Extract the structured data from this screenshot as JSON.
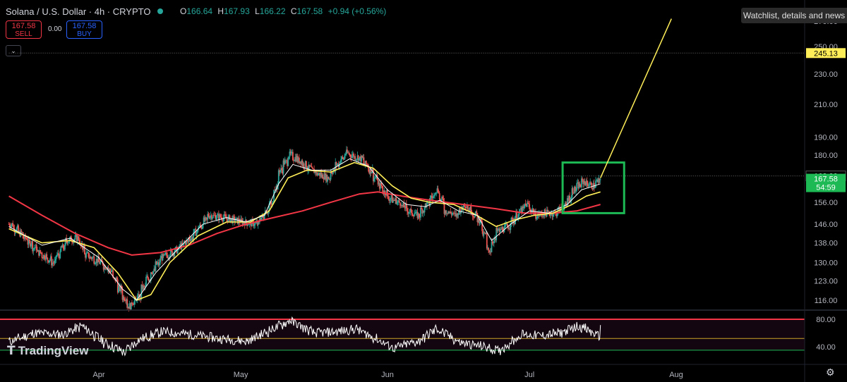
{
  "header": {
    "symbol": "Solana / U.S. Dollar · 4h · CRYPTO",
    "ohlc": [
      {
        "k": "O",
        "v": "166.64"
      },
      {
        "k": "H",
        "v": "167.93"
      },
      {
        "k": "L",
        "v": "166.22"
      },
      {
        "k": "C",
        "v": "167.58"
      }
    ],
    "change": "+0.94 (+0.56%)"
  },
  "trade": {
    "sell_price": "167.58",
    "sell_label": "SELL",
    "spread": "0.00",
    "buy_price": "167.58",
    "buy_label": "BUY"
  },
  "watchlist_button": "Watchlist, details and news",
  "brand": "TradingView",
  "colors": {
    "up": "#26a69a",
    "down": "#ef5350",
    "ma_fast": "#ffffff",
    "ma_mid": "#ffee58",
    "ma_slow": "#f23645",
    "box": "#1db954",
    "bg": "#000000",
    "rsi": "#ffffff"
  },
  "chart_data": {
    "type": "candlestick",
    "timeframe": "4h",
    "x_ticks": [
      "Apr",
      "May",
      "Jun",
      "Jul",
      "Aug"
    ],
    "y_ticks": [
      116.0,
      123.0,
      130.0,
      138.0,
      146.0,
      156.0,
      168.0,
      180.0,
      190.0,
      210.0,
      230.0,
      250.0,
      270.0
    ],
    "y_scale": "log",
    "y_range": [
      113,
      272
    ],
    "price_labels": [
      {
        "text": "245.13",
        "value": 245.13,
        "color": "#ffee58",
        "text_color": "#000000"
      },
      {
        "text": "168.99",
        "value": 168.99,
        "color": "#000000",
        "text_color": "#ffffff"
      },
      {
        "text": "167.58",
        "sub": "54:59",
        "value": 167.58,
        "color": "#1db954",
        "text_color": "#ffffff"
      }
    ],
    "close_path": [
      [
        "Mar 13",
        146
      ],
      [
        "Mar 16",
        140
      ],
      [
        "Mar 19",
        134
      ],
      [
        "Mar 22",
        130
      ],
      [
        "Mar 25",
        139
      ],
      [
        "Mar 27",
        140
      ],
      [
        "Mar 29",
        133
      ],
      [
        "Apr 1",
        130
      ],
      [
        "Apr 3",
        127
      ],
      [
        "Apr 5",
        120
      ],
      [
        "Apr 7",
        114
      ],
      [
        "Apr 9",
        117
      ],
      [
        "Apr 11",
        124
      ],
      [
        "Apr 14",
        132
      ],
      [
        "Apr 17",
        135
      ],
      [
        "Apr 20",
        140
      ],
      [
        "Apr 22",
        145
      ],
      [
        "Apr 24",
        150
      ],
      [
        "Apr 27",
        149
      ],
      [
        "Apr 29",
        148
      ],
      [
        "May 1",
        147
      ],
      [
        "May 4",
        146
      ],
      [
        "May 7",
        155
      ],
      [
        "May 9",
        172
      ],
      [
        "May 11",
        180
      ],
      [
        "May 13",
        177
      ],
      [
        "May 15",
        173
      ],
      [
        "May 17",
        170
      ],
      [
        "May 19",
        168
      ],
      [
        "May 21",
        175
      ],
      [
        "May 23",
        181
      ],
      [
        "May 26",
        178
      ],
      [
        "May 28",
        172
      ],
      [
        "May 30",
        164
      ],
      [
        "Jun 1",
        158
      ],
      [
        "Jun 3",
        156
      ],
      [
        "Jun 5",
        152
      ],
      [
        "Jun 7",
        150
      ],
      [
        "Jun 9",
        155
      ],
      [
        "Jun 11",
        162
      ],
      [
        "Jun 13",
        152
      ],
      [
        "Jun 15",
        150
      ],
      [
        "Jun 17",
        155
      ],
      [
        "Jun 20",
        148
      ],
      [
        "Jun 22",
        135
      ],
      [
        "Jun 24",
        143
      ],
      [
        "Jun 26",
        145
      ],
      [
        "Jun 28",
        150
      ],
      [
        "Jun 30",
        155
      ],
      [
        "Jul 2",
        150
      ],
      [
        "Jul 4",
        151
      ],
      [
        "Jul 6",
        151
      ],
      [
        "Jul 8",
        154
      ],
      [
        "Jul 10",
        162
      ],
      [
        "Jul 12",
        166
      ],
      [
        "Jul 14",
        164
      ],
      [
        "Jul 15",
        166
      ],
      [
        "Jul 16",
        167.58
      ]
    ],
    "ma_fast_path": [
      [
        "Mar 13",
        145
      ],
      [
        "Mar 20",
        137
      ],
      [
        "Mar 26",
        140
      ],
      [
        "Apr 1",
        132
      ],
      [
        "Apr 6",
        120
      ],
      [
        "Apr 9",
        116
      ],
      [
        "Apr 13",
        126
      ],
      [
        "Apr 18",
        136
      ],
      [
        "Apr 23",
        146
      ],
      [
        "Apr 28",
        149
      ],
      [
        "May 2",
        147
      ],
      [
        "May 6",
        150
      ],
      [
        "May 9",
        165
      ],
      [
        "May 12",
        175
      ],
      [
        "May 16",
        172
      ],
      [
        "May 20",
        172
      ],
      [
        "May 24",
        178
      ],
      [
        "May 28",
        174
      ],
      [
        "Jun 1",
        162
      ],
      [
        "Jun 5",
        155
      ],
      [
        "Jun 9",
        154
      ],
      [
        "Jun 12",
        157
      ],
      [
        "Jun 16",
        152
      ],
      [
        "Jun 20",
        150
      ],
      [
        "Jun 23",
        139
      ],
      [
        "Jun 27",
        146
      ],
      [
        "Jul 1",
        152
      ],
      [
        "Jul 5",
        151
      ],
      [
        "Jul 9",
        155
      ],
      [
        "Jul 12",
        162
      ],
      [
        "Jul 16",
        165
      ]
    ],
    "ma_mid_path": [
      [
        "Mar 13",
        144
      ],
      [
        "Mar 20",
        138
      ],
      [
        "Mar 26",
        139
      ],
      [
        "Mar 31",
        136
      ],
      [
        "Apr 5",
        126
      ],
      [
        "Apr 9",
        116
      ],
      [
        "Apr 12",
        118
      ],
      [
        "Apr 16",
        130
      ],
      [
        "Apr 22",
        141
      ],
      [
        "Apr 28",
        147
      ],
      [
        "May 3",
        147
      ],
      [
        "May 7",
        152
      ],
      [
        "May 11",
        168
      ],
      [
        "May 15",
        172
      ],
      [
        "May 20",
        171
      ],
      [
        "May 25",
        176
      ],
      [
        "May 29",
        173
      ],
      [
        "Jun 2",
        164
      ],
      [
        "Jun 6",
        158
      ],
      [
        "Jun 10",
        156
      ],
      [
        "Jun 15",
        155
      ],
      [
        "Jun 19",
        151
      ],
      [
        "Jun 24",
        145
      ],
      [
        "Jun 28",
        148
      ],
      [
        "Jul 2",
        150
      ],
      [
        "Jul 6",
        151
      ],
      [
        "Jul 10",
        155
      ],
      [
        "Jul 13",
        159
      ],
      [
        "Jul 16",
        161
      ]
    ],
    "ma_slow_path": [
      [
        "Mar 13",
        159
      ],
      [
        "Mar 20",
        150
      ],
      [
        "Mar 27",
        142
      ],
      [
        "Apr 3",
        136
      ],
      [
        "Apr 8",
        133
      ],
      [
        "Apr 14",
        134
      ],
      [
        "Apr 20",
        137
      ],
      [
        "Apr 26",
        142
      ],
      [
        "May 2",
        146
      ],
      [
        "May 8",
        149
      ],
      [
        "May 14",
        152
      ],
      [
        "May 20",
        156
      ],
      [
        "May 26",
        160
      ],
      [
        "May 30",
        161
      ],
      [
        "Jun 4",
        159
      ],
      [
        "Jun 10",
        157
      ],
      [
        "Jun 17",
        155
      ],
      [
        "Jun 24",
        153
      ],
      [
        "Jun 30",
        151
      ],
      [
        "Jul 6",
        151
      ],
      [
        "Jul 11",
        152
      ],
      [
        "Jul 16",
        155
      ]
    ],
    "projection_line": {
      "from": [
        "Jul 16",
        168
      ],
      "to": [
        "Jul 31",
        272
      ],
      "color": "#ffee58"
    },
    "highlight_box": {
      "x_from": "Jul 8",
      "x_to": "Jul 21",
      "y_from": 151,
      "y_to": 176,
      "color": "#1db954"
    },
    "reference_lines": [
      {
        "value": 245.13,
        "style": "dotted",
        "from": "Mar 13"
      },
      {
        "value": 168.99,
        "style": "dotted",
        "from": "Jun 2"
      }
    ],
    "rsi": {
      "levels": [
        80,
        40
      ],
      "y_ticks": [
        80.0,
        40.0
      ],
      "range": [
        26,
        85
      ],
      "upper_band": 80,
      "mid_band": 52,
      "lower_band": 35,
      "values_path": [
        [
          "Mar 13",
          48
        ],
        [
          "Mar 18",
          60
        ],
        [
          "Mar 24",
          58
        ],
        [
          "Mar 28",
          70
        ],
        [
          "Apr 2",
          45
        ],
        [
          "Apr 6",
          32
        ],
        [
          "Apr 9",
          50
        ],
        [
          "Apr 14",
          62
        ],
        [
          "Apr 20",
          58
        ],
        [
          "Apr 26",
          52
        ],
        [
          "May 2",
          48
        ],
        [
          "May 8",
          68
        ],
        [
          "May 11",
          78
        ],
        [
          "May 16",
          60
        ],
        [
          "May 21",
          62
        ],
        [
          "May 25",
          66
        ],
        [
          "May 29",
          52
        ],
        [
          "Jun 2",
          38
        ],
        [
          "Jun 7",
          48
        ],
        [
          "Jun 11",
          66
        ],
        [
          "Jun 16",
          46
        ],
        [
          "Jun 21",
          40
        ],
        [
          "Jun 24",
          34
        ],
        [
          "Jun 29",
          58
        ],
        [
          "Jul 3",
          56
        ],
        [
          "Jul 7",
          60
        ],
        [
          "Jul 11",
          70
        ],
        [
          "Jul 13",
          64
        ],
        [
          "Jul 15",
          56
        ],
        [
          "Jul 16",
          66
        ]
      ]
    }
  }
}
